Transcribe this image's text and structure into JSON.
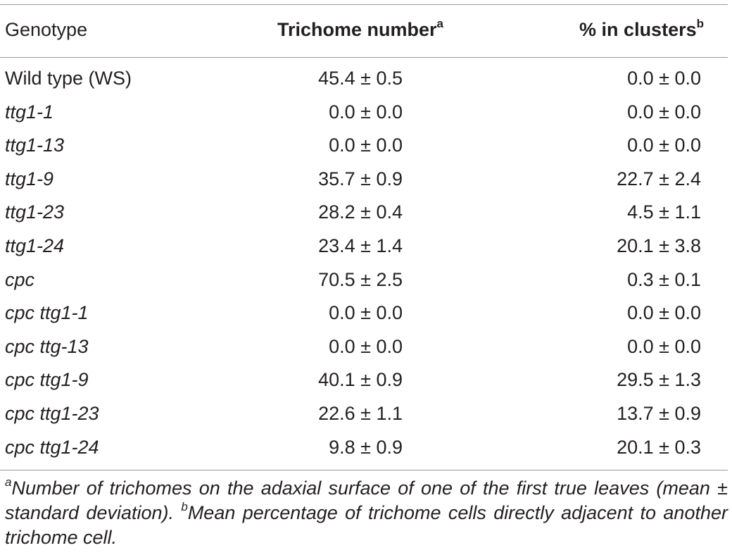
{
  "table": {
    "headers": {
      "genotype": "Genotype",
      "trichome_number": "Trichome number",
      "trichome_number_sup": "a",
      "clusters": "% in clusters",
      "clusters_sup": "b"
    },
    "rows": [
      {
        "genotype": "Wild type (WS)",
        "italic": false,
        "trichome_number": "45.4 ± 0.5",
        "clusters": "0.0 ± 0.0"
      },
      {
        "genotype": "ttg1-1",
        "italic": true,
        "trichome_number": "0.0 ± 0.0",
        "clusters": "0.0 ± 0.0"
      },
      {
        "genotype": "ttg1-13",
        "italic": true,
        "trichome_number": "0.0 ± 0.0",
        "clusters": "0.0 ± 0.0"
      },
      {
        "genotype": "ttg1-9",
        "italic": true,
        "trichome_number": "35.7 ± 0.9",
        "clusters": "22.7 ± 2.4"
      },
      {
        "genotype": "ttg1-23",
        "italic": true,
        "trichome_number": "28.2 ± 0.4",
        "clusters": "4.5 ± 1.1"
      },
      {
        "genotype": "ttg1-24",
        "italic": true,
        "trichome_number": "23.4 ± 1.4",
        "clusters": "20.1 ± 3.8"
      },
      {
        "genotype": "cpc",
        "italic": true,
        "trichome_number": "70.5 ± 2.5",
        "clusters": "0.3 ± 0.1"
      },
      {
        "genotype": "cpc ttg1-1",
        "italic": true,
        "trichome_number": "0.0 ± 0.0",
        "clusters": "0.0 ± 0.0"
      },
      {
        "genotype": "cpc ttg-13",
        "italic": true,
        "trichome_number": "0.0 ± 0.0",
        "clusters": "0.0 ± 0.0"
      },
      {
        "genotype": "cpc ttg1-9",
        "italic": true,
        "trichome_number": "40.1 ± 0.9",
        "clusters": "29.5 ± 1.3"
      },
      {
        "genotype": "cpc ttg1-23",
        "italic": true,
        "trichome_number": "22.6 ± 1.1",
        "clusters": "13.7 ± 0.9"
      },
      {
        "genotype": "cpc ttg1-24",
        "italic": true,
        "trichome_number": "9.8 ± 0.9",
        "clusters": "20.1 ± 0.3"
      }
    ]
  },
  "footnotes": {
    "a_marker": "a",
    "a_text": "Number of trichomes on the adaxial surface of one of the first true leaves (mean ± standard deviation). ",
    "b_marker": "b",
    "b_text": "Mean percentage of trichome cells directly adjacent to another trichome cell."
  }
}
